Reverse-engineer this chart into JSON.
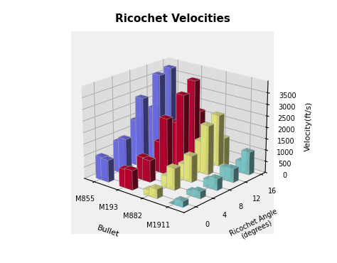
{
  "title": "Ricochet Velocities",
  "xlabel": "Bullet",
  "ylabel": "Ricochet Angle\n(degrees)",
  "zlabel": "Velocity(ft/s)",
  "bullets": [
    "M855",
    "M193",
    "M882",
    "M1911"
  ],
  "angles": [
    0,
    4,
    8,
    12,
    16
  ],
  "velocities": [
    [
      1000,
      1350,
      2000,
      2250,
      3100,
      3800,
      950,
      1550,
      3050,
      3800,
      2500,
      2250,
      1250,
      1200,
      2100,
      2250,
      1200,
      2150,
      2100,
      2200
    ],
    [
      800,
      1000,
      1350,
      1900,
      3000,
      3500,
      850,
      950,
      2450,
      3200,
      2200,
      2250,
      1200,
      1150,
      1650,
      2250,
      1100,
      2000,
      1800,
      2100
    ],
    [
      250,
      500,
      700,
      1400,
      1550,
      2250,
      400,
      950,
      1150,
      2150,
      1300,
      2250,
      850,
      1000,
      1250,
      2250,
      800,
      1150,
      1200,
      2000
    ],
    [
      0,
      200,
      350,
      550,
      350,
      500,
      250,
      300,
      500,
      600,
      1000,
      1250,
      700,
      900,
      800,
      2250,
      700,
      800,
      1000,
      1800
    ]
  ],
  "bar_colors": [
    "#7878FF",
    "#CC0033",
    "#FFFF88",
    "#88DDDD"
  ],
  "background_color": "#f0f0f0",
  "floor_color": "#888888",
  "zlim": [
    0,
    4000
  ],
  "zticks": [
    0,
    500,
    1000,
    1500,
    2000,
    2500,
    3000,
    3500
  ]
}
